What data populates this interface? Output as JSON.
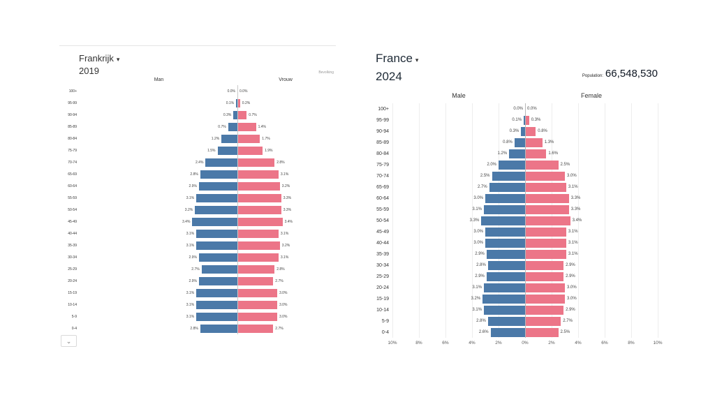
{
  "left_panel": {
    "title": "Frankrijk",
    "dropdown_caret": "▾",
    "year": "2019",
    "population_label": "Bevolking",
    "collapse_icon": "⌄"
  },
  "right_panel": {
    "title": "France",
    "dropdown_caret": "▾",
    "year": "2024",
    "population_label": "Population:",
    "population_value": "66,548,530"
  },
  "colors": {
    "male": "#4b79a8",
    "female": "#ec7588",
    "center_axis": "#b8b8b8",
    "grid": "#ededed"
  },
  "chart_data": [
    {
      "id": "pyramid-2019",
      "type": "bar",
      "subtype": "population-pyramid",
      "title": "Frankrijk 2019",
      "left_label": "Man",
      "right_label": "Vrouw",
      "unit": "% of total population",
      "xlim_each_side": [
        0,
        10
      ],
      "categories": [
        "100+",
        "95-99",
        "90-94",
        "85-89",
        "80-84",
        "75-79",
        "70-74",
        "65-69",
        "60-64",
        "55-59",
        "50-54",
        "45-49",
        "40-44",
        "35-39",
        "30-34",
        "25-29",
        "20-24",
        "15-19",
        "10-14",
        "5-9",
        "0-4"
      ],
      "series": [
        {
          "name": "Man",
          "values": [
            0.0,
            0.1,
            0.3,
            0.7,
            1.2,
            1.5,
            2.4,
            2.8,
            2.9,
            3.1,
            3.2,
            3.4,
            3.1,
            3.1,
            2.9,
            2.7,
            2.9,
            3.1,
            3.1,
            3.1,
            2.8
          ]
        },
        {
          "name": "Vrouw",
          "values": [
            0.0,
            0.2,
            0.7,
            1.4,
            1.7,
            1.9,
            2.8,
            3.1,
            3.2,
            3.3,
            3.3,
            3.4,
            3.1,
            3.2,
            3.1,
            2.8,
            2.7,
            3.0,
            3.0,
            3.0,
            2.7
          ]
        }
      ],
      "x_ticks": []
    },
    {
      "id": "pyramid-2024",
      "type": "bar",
      "subtype": "population-pyramid",
      "title": "France 2024",
      "left_label": "Male",
      "right_label": "Female",
      "unit": "% of total population",
      "xlim_each_side": [
        0,
        10
      ],
      "categories": [
        "100+",
        "95-99",
        "90-94",
        "85-89",
        "80-84",
        "75-79",
        "70-74",
        "65-69",
        "60-64",
        "55-59",
        "50-54",
        "45-49",
        "40-44",
        "35-39",
        "30-34",
        "25-29",
        "20-24",
        "15-19",
        "10-14",
        "5-9",
        "0-4"
      ],
      "series": [
        {
          "name": "Male",
          "values": [
            0.0,
            0.1,
            0.3,
            0.8,
            1.2,
            2.0,
            2.5,
            2.7,
            3.0,
            3.1,
            3.3,
            3.0,
            3.0,
            2.9,
            2.8,
            2.9,
            3.1,
            3.2,
            3.1,
            2.8,
            2.6
          ]
        },
        {
          "name": "Female",
          "values": [
            0.0,
            0.3,
            0.8,
            1.3,
            1.6,
            2.5,
            3.0,
            3.1,
            3.3,
            3.3,
            3.4,
            3.1,
            3.1,
            3.1,
            2.9,
            2.9,
            3.0,
            3.0,
            2.9,
            2.7,
            2.5
          ]
        }
      ],
      "x_ticks": [
        "10%",
        "8%",
        "6%",
        "4%",
        "2%",
        "0%",
        "2%",
        "4%",
        "6%",
        "8%",
        "10%"
      ]
    }
  ]
}
